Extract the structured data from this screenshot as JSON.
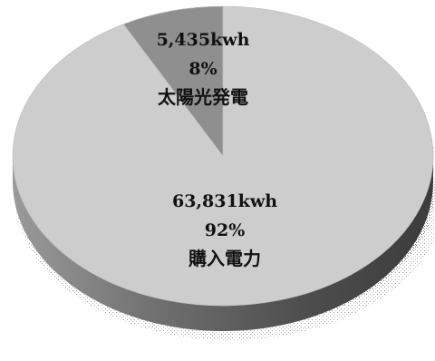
{
  "chart_data": {
    "type": "pie",
    "title": "",
    "slices": [
      {
        "label": "太陽光発電",
        "value_text": "5,435kwh",
        "percent_text": "8%",
        "value": 5435,
        "percent": 8,
        "color": "#8f8f8f"
      },
      {
        "label": "購入電力",
        "value_text": "63,831kwh",
        "percent_text": "92%",
        "value": 63831,
        "percent": 92,
        "color": "#cdcdcd"
      }
    ],
    "side_color": "#6a6a6a",
    "style": "3d"
  }
}
